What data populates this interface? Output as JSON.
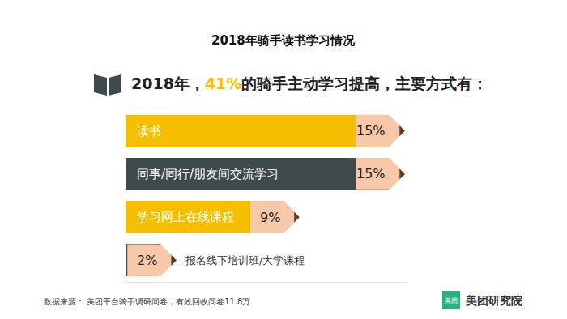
{
  "chart_data": {
    "type": "bar",
    "orientation": "horizontal",
    "title": "2018年骑手读书学习情况",
    "subtitle": "2018年，41%的骑手主动学习提高，主要方式有：",
    "categories": [
      "读书",
      "同事/同行/朋友间交流学习",
      "学习网上在线课程",
      "报名线下培训班/大学课程"
    ],
    "values": [
      15,
      15,
      9,
      2
    ],
    "value_labels": [
      "15%",
      "15%",
      "9%",
      "2%"
    ],
    "colors": [
      "#f5bf00",
      "#3e4a4b",
      "#f5bf00",
      "#3e4a4b"
    ],
    "data_labels": true,
    "tick_labels": false,
    "grid": false,
    "xlim": [
      0,
      16
    ],
    "xticks": [],
    "annotations": {
      "source": "数据来源： 美团平台骑手调研问卷，有效回收问卷11.8万",
      "logo_icon": "美团",
      "logo_text": "美团研究院"
    }
  }
}
